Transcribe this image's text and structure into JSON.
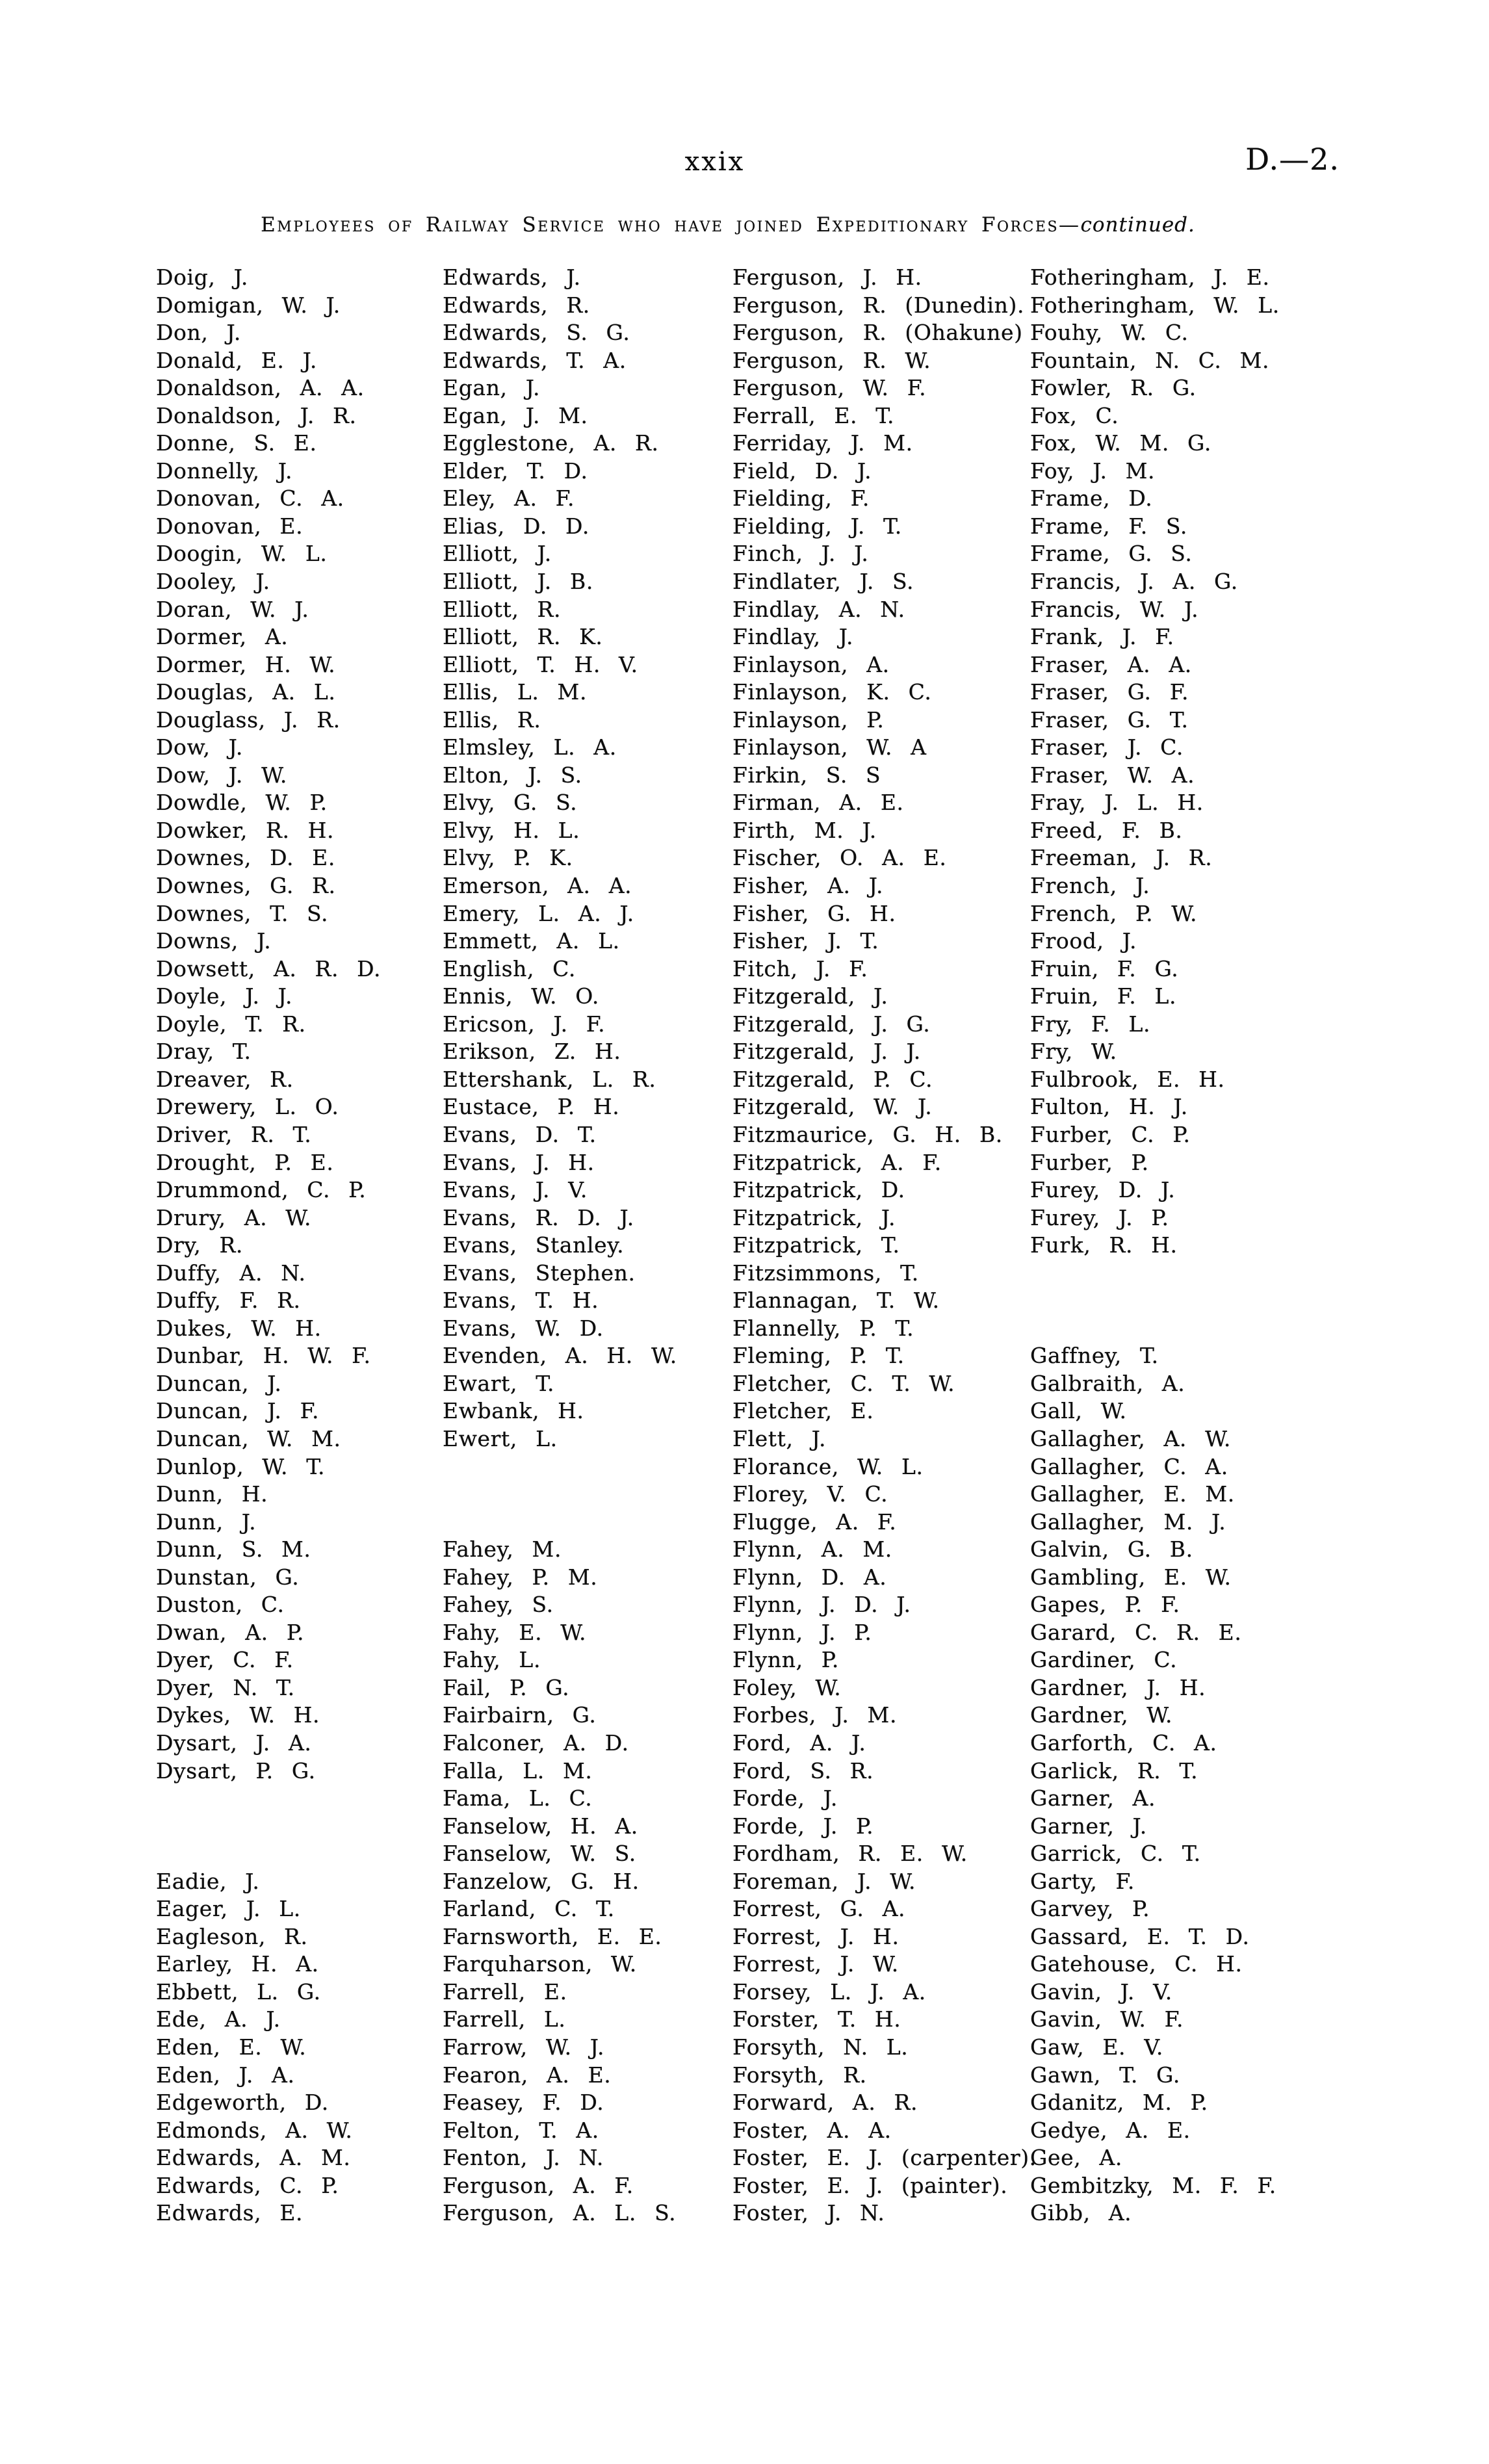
{
  "header": {
    "page_number": "xxix",
    "doc_ref": "D.—2."
  },
  "title": {
    "main": "Employees of Railway Service who have joined Expeditionary Forces",
    "separator": "—",
    "continued": "continued."
  },
  "columns": [
    [
      "Doig, J.",
      "Domigan, W. J.",
      "Don, J.",
      "Donald, E. J.",
      "Donaldson, A. A.",
      "Donaldson, J. R.",
      "Donne, S. E.",
      "Donnelly, J.",
      "Donovan, C. A.",
      "Donovan, E.",
      "Doogin, W. L.",
      "Dooley, J.",
      "Doran, W. J.",
      "Dormer, A.",
      "Dormer, H. W.",
      "Douglas, A. L.",
      "Douglass, J. R.",
      "Dow, J.",
      "Dow, J. W.",
      "Dowdle, W. P.",
      "Dowker, R. H.",
      "Downes, D. E.",
      "Downes, G. R.",
      "Downes, T. S.",
      "Downs, J.",
      "Dowsett, A. R. D.",
      "Doyle, J. J.",
      "Doyle, T. R.",
      "Dray, T.",
      "Dreaver, R.",
      "Drewery, L. O.",
      "Driver, R. T.",
      "Drought, P. E.",
      "Drummond, C. P.",
      "Drury, A. W.",
      "Dry, R.",
      "Duffy, A. N.",
      "Duffy, F. R.",
      "Dukes, W. H.",
      "Dunbar, H. W. F.",
      "Duncan, J.",
      "Duncan, J. F.",
      "Duncan, W. M.",
      "Dunlop, W. T.",
      "Dunn, H.",
      "Dunn, J.",
      "Dunn, S. M.",
      "Dunstan, G.",
      "Duston, C.",
      "Dwan, A. P.",
      "Dyer, C. F.",
      "Dyer, N. T.",
      "Dykes, W. H.",
      "Dysart, J. A.",
      "Dysart, P. G.",
      "",
      "",
      "",
      "Eadie, J.",
      "Eager, J. L.",
      "Eagleson, R.",
      "Earley, H. A.",
      "Ebbett, L. G.",
      "Ede, A. J.",
      "Eden, E. W.",
      "Eden, J. A.",
      "Edgeworth, D.",
      "Edmonds, A. W.",
      "Edwards, A. M.",
      "Edwards, C. P.",
      "Edwards, E."
    ],
    [
      "Edwards, J.",
      "Edwards, R.",
      "Edwards, S. G.",
      "Edwards, T. A.",
      "Egan, J.",
      "Egan, J. M.",
      "Egglestone, A. R.",
      "Elder, T. D.",
      "Eley, A. F.",
      "Elias, D. D.",
      "Elliott, J.",
      "Elliott, J. B.",
      "Elliott, R.",
      "Elliott, R. K.",
      "Elliott, T. H. V.",
      "Ellis, L. M.",
      "Ellis, R.",
      "Elmsley, L. A.",
      "Elton, J. S.",
      "Elvy, G. S.",
      "Elvy, H. L.",
      "Elvy, P. K.",
      "Emerson, A. A.",
      "Emery, L. A. J.",
      "Emmett, A. L.",
      "English, C.",
      "Ennis, W. O.",
      "Ericson, J. F.",
      "Erikson, Z. H.",
      "Ettershank, L. R.",
      "Eustace, P. H.",
      "Evans, D. T.",
      "Evans, J. H.",
      "Evans, J. V.",
      "Evans, R. D. J.",
      "Evans, Stanley.",
      "Evans, Stephen.",
      "Evans, T. H.",
      "Evans, W. D.",
      "Evenden, A. H. W.",
      "Ewart, T.",
      "Ewbank, H.",
      "Ewert, L.",
      "",
      "",
      "",
      "Fahey, M.",
      "Fahey, P. M.",
      "Fahey, S.",
      "Fahy, E. W.",
      "Fahy, L.",
      "Fail, P. G.",
      "Fairbairn, G.",
      "Falconer, A. D.",
      "Falla, L. M.",
      "Fama, L. C.",
      "Fanselow, H. A.",
      "Fanselow, W. S.",
      "Fanzelow, G. H.",
      "Farland, C. T.",
      "Farnsworth, E. E.",
      "Farquharson, W.",
      "Farrell, E.",
      "Farrell, L.",
      "Farrow, W. J.",
      "Fearon, A. E.",
      "Feasey, F. D.",
      "Felton, T. A.",
      "Fenton, J. N.",
      "Ferguson, A. F.",
      "Ferguson, A. L. S."
    ],
    [
      "Ferguson, J. H.",
      "Ferguson, R. (Dunedin).",
      "Ferguson, R. (Ohakune)",
      "Ferguson, R. W.",
      "Ferguson, W. F.",
      "Ferrall, E. T.",
      "Ferriday, J. M.",
      "Field, D. J.",
      "Fielding, F.",
      "Fielding, J. T.",
      "Finch, J. J.",
      "Findlater, J. S.",
      "Findlay, A. N.",
      "Findlay, J.",
      "Finlayson, A.",
      "Finlayson, K. C.",
      "Finlayson, P.",
      "Finlayson, W. A",
      "Firkin, S. S",
      "Firman, A. E.",
      "Firth, M. J.",
      "Fischer, O. A. E.",
      "Fisher, A. J.",
      "Fisher, G. H.",
      "Fisher, J. T.",
      "Fitch, J. F.",
      "Fitzgerald, J.",
      "Fitzgerald, J. G.",
      "Fitzgerald, J. J.",
      "Fitzgerald, P. C.",
      "Fitzgerald, W. J.",
      "Fitzmaurice, G. H. B.",
      "Fitzpatrick, A. F.",
      "Fitzpatrick, D.",
      "Fitzpatrick, J.",
      "Fitzpatrick, T.",
      "Fitzsimmons, T.",
      "Flannagan, T. W.",
      "Flannelly, P. T.",
      "Fleming, P. T.",
      "Fletcher, C. T. W.",
      "Fletcher, E.",
      "Flett, J.",
      "Florance, W. L.",
      "Florey, V. C.",
      "Flugge, A. F.",
      "Flynn, A. M.",
      "Flynn, D. A.",
      "Flynn, J. D. J.",
      "Flynn, J. P.",
      "Flynn, P.",
      "Foley, W.",
      "Forbes, J. M.",
      "Ford, A. J.",
      "Ford, S. R.",
      "Forde, J.",
      "Forde, J. P.",
      "Fordham, R. E. W.",
      "Foreman, J. W.",
      "Forrest, G. A.",
      "Forrest, J. H.",
      "Forrest, J. W.",
      "Forsey, L. J. A.",
      "Forster, T. H.",
      "Forsyth, N. L.",
      "Forsyth, R.",
      "Forward, A. R.",
      "Foster, A. A.",
      "Foster, E. J. (carpenter).",
      "Foster, E. J. (painter).",
      "Foster, J. N."
    ],
    [
      "Fotheringham, J. E.",
      "Fotheringham, W. L.",
      "Fouhy, W. C.",
      "Fountain, N. C. M.",
      "Fowler, R. G.",
      "Fox, C.",
      "Fox, W. M. G.",
      "Foy, J. M.",
      "Frame, D.",
      "Frame, F. S.",
      "Frame, G. S.",
      "Francis, J. A. G.",
      "Francis, W. J.",
      "Frank, J. F.",
      "Fraser, A. A.",
      "Fraser, G. F.",
      "Fraser, G. T.",
      "Fraser, J. C.",
      "Fraser, W. A.",
      "Fray, J. L. H.",
      "Freed, F. B.",
      "Freeman, J. R.",
      "French, J.",
      "French, P. W.",
      "Frood, J.",
      "Fruin, F. G.",
      "Fruin, F. L.",
      "Fry, F. L.",
      "Fry, W.",
      "Fulbrook, E. H.",
      "Fulton, H. J.",
      "Furber, C. P.",
      "Furber, P.",
      "Furey, D. J.",
      "Furey, J. P.",
      "Furk, R. H.",
      "",
      "",
      "",
      "Gaffney, T.",
      "Galbraith, A.",
      "Gall, W.",
      "Gallagher, A. W.",
      "Gallagher, C. A.",
      "Gallagher, E. M.",
      "Gallagher, M. J.",
      "Galvin, G. B.",
      "Gambling, E. W.",
      "Gapes, P. F.",
      "Garard, C. R. E.",
      "Gardiner, C.",
      "Gardner, J. H.",
      "Gardner, W.",
      "Garforth, C. A.",
      "Garlick, R. T.",
      "Garner, A.",
      "Garner, J.",
      "Garrick, C. T.",
      "Garty, F.",
      "Garvey, P.",
      "Gassard, E. T. D.",
      "Gatehouse, C. H.",
      "Gavin, J. V.",
      "Gavin, W. F.",
      "Gaw, E. V.",
      "Gawn, T. G.",
      "Gdanitz, M. P.",
      "Gedye, A. E.",
      "Gee, A.",
      "Gembitzky, M. F. F.",
      "Gibb, A."
    ]
  ]
}
